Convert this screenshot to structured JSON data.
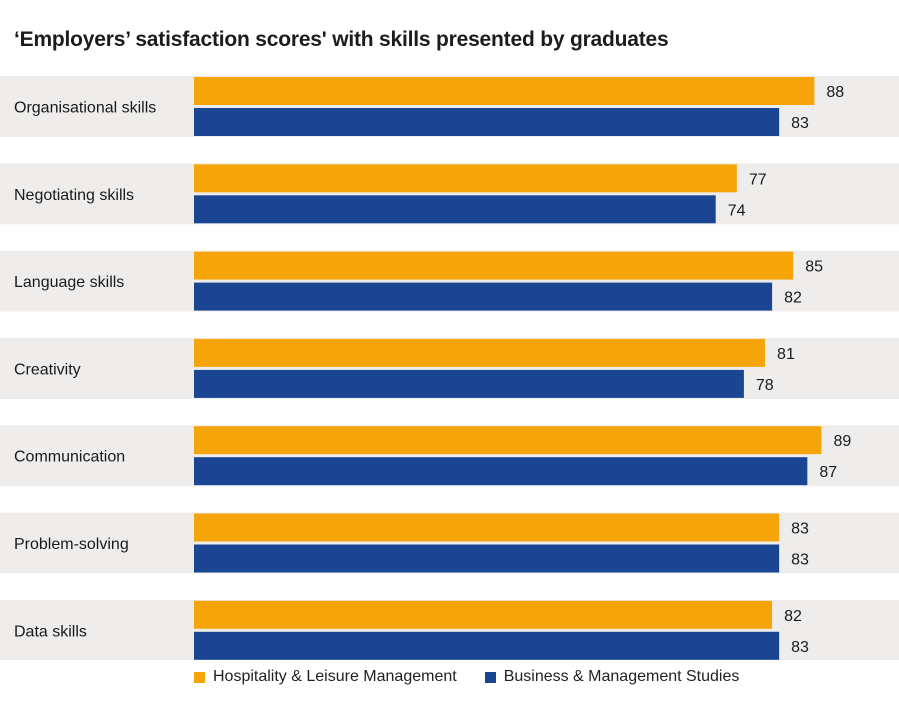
{
  "chart_data": {
    "type": "bar",
    "orientation": "horizontal",
    "title": "‘Employers’ satisfaction scores' with skills presented by graduates",
    "categories": [
      "Organisational skills",
      "Negotiating skills",
      "Language skills",
      "Creativity",
      "Communication",
      "Problem-solving",
      "Data skills"
    ],
    "series": [
      {
        "name": "Hospitality & Leisure Management",
        "color": "#F5A50A",
        "values": [
          88,
          77,
          85,
          81,
          89,
          83,
          82
        ]
      },
      {
        "name": "Business & Management Studies",
        "color": "#1A4593",
        "values": [
          83,
          74,
          82,
          78,
          87,
          83,
          83
        ]
      }
    ],
    "xlim": [
      0,
      100
    ],
    "grid": false,
    "data_labels": true,
    "legend_position": "bottom",
    "row_background": "#EFEDEB"
  }
}
